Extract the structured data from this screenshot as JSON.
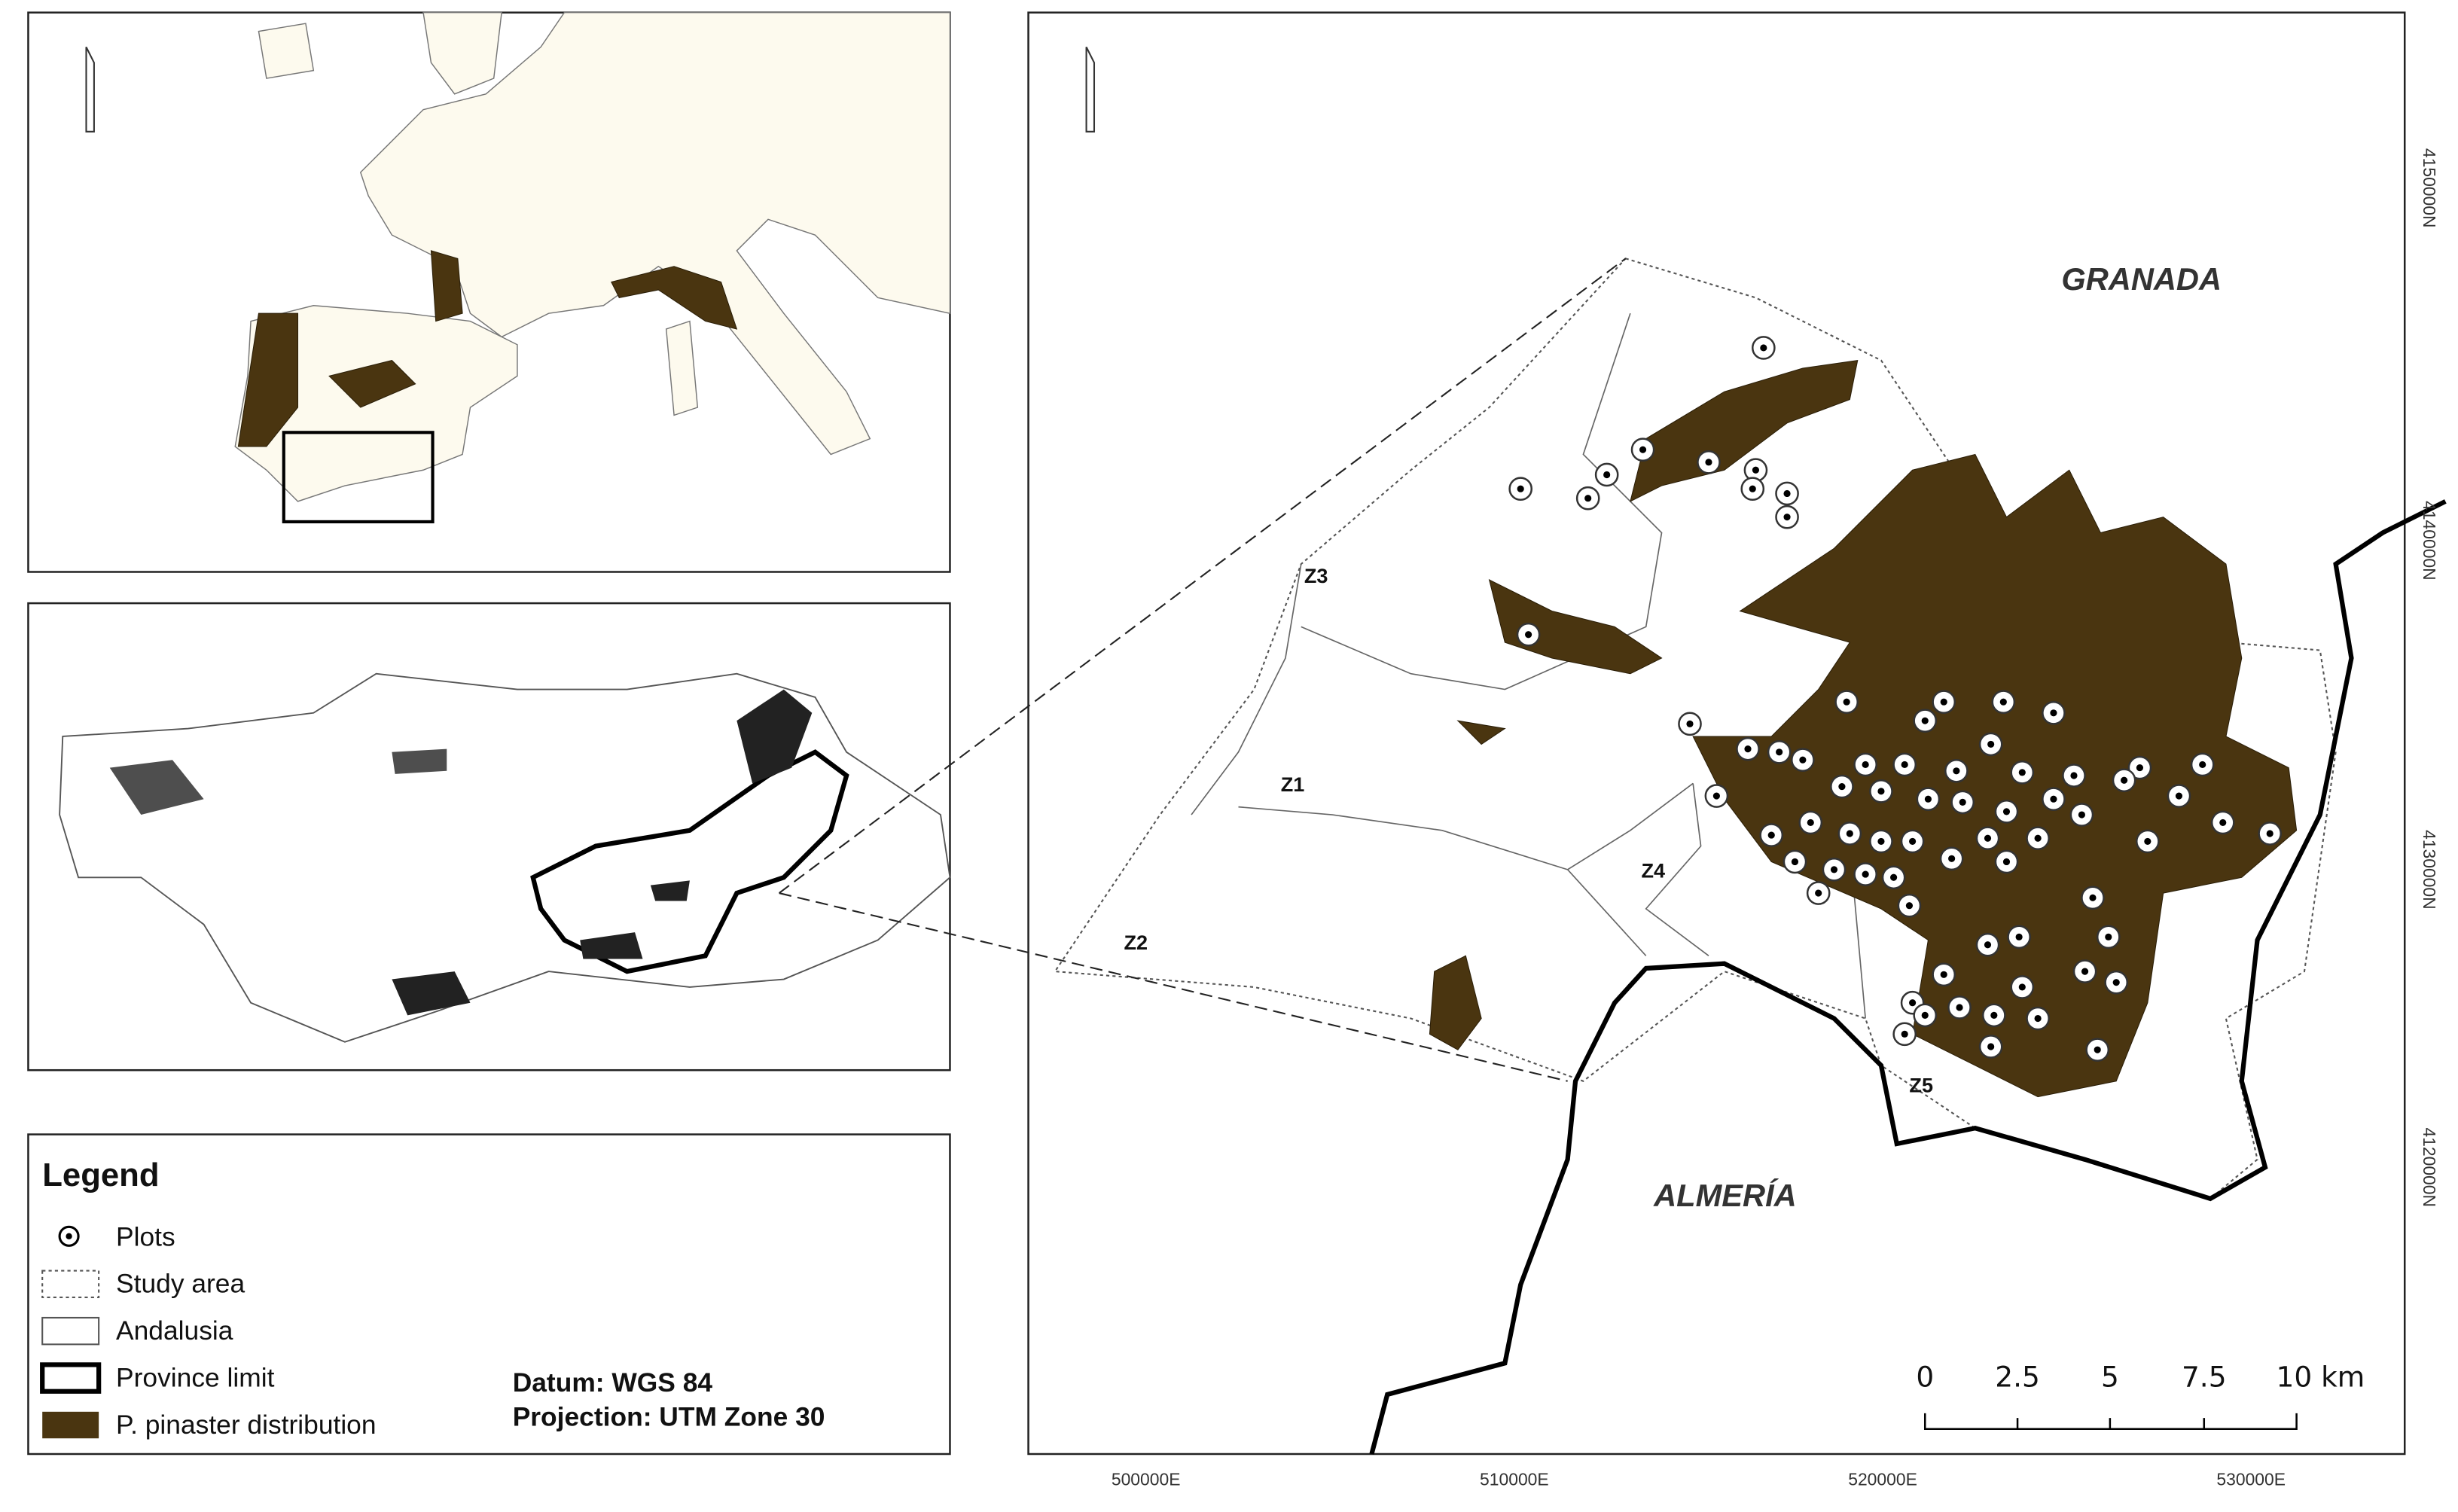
{
  "main_map": {
    "granada": "GRANADA",
    "almeria": "ALMERÍA",
    "zones": [
      "Z1",
      "Z2",
      "Z3",
      "Z4",
      "Z5"
    ],
    "x_labels": [
      "500000E",
      "510000E",
      "520000E",
      "530000E"
    ],
    "y_labels": [
      "4150000N",
      "4140000N",
      "4130000N",
      "4120000N"
    ],
    "scale_bar": [
      "0",
      "2.5",
      "5",
      "7.5",
      "10 km"
    ]
  },
  "legend": {
    "title": "Legend",
    "items": [
      "Plots",
      "Study area",
      "Andalusia",
      "Province limit",
      "P. pinaster distribution"
    ],
    "datum": "Datum: WGS 84",
    "projection": "Projection: UTM Zone 30"
  }
}
